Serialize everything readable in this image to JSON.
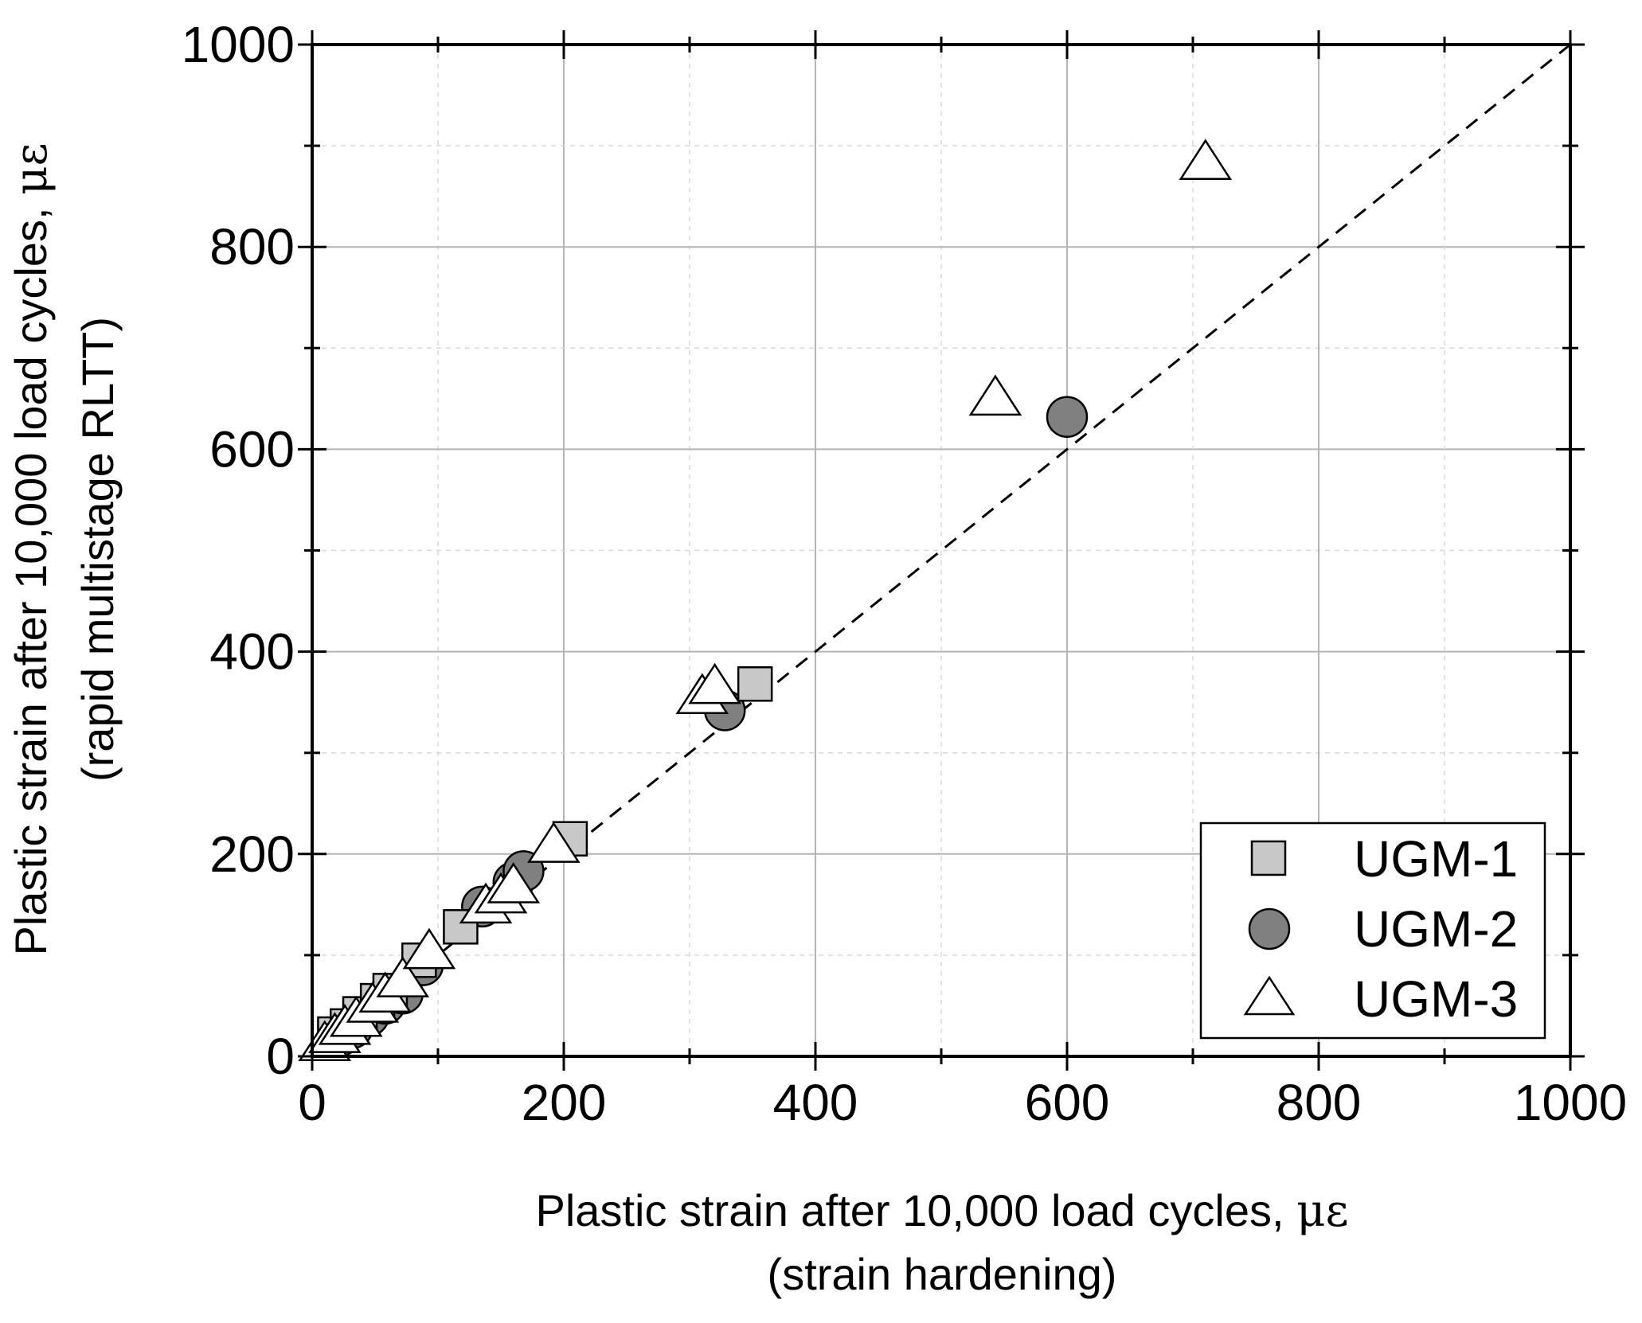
{
  "chart_data": {
    "type": "scatter",
    "xlabel": "Plastic strain after 10,000 load cycles, ",
    "xlabel_unit": "με",
    "xlabel_sub": "(strain hardening)",
    "ylabel": "Plastic strain after 10,000 load cycles, ",
    "ylabel_unit": "με",
    "ylabel_sub": "(rapid multistage RLTT)",
    "xlim": [
      0,
      1000
    ],
    "ylim": [
      0,
      1000
    ],
    "xticks": [
      "0",
      "200",
      "400",
      "600",
      "800",
      "1000"
    ],
    "yticks": [
      "0",
      "200",
      "400",
      "600",
      "800",
      "1000"
    ],
    "grid": true,
    "reference_line": {
      "style": "dashed",
      "x": [
        0,
        1000
      ],
      "y": [
        0,
        1000
      ]
    },
    "legend_position": "bottom-right",
    "series": [
      {
        "name": "UGM-1",
        "marker": "square",
        "color": "#c8c8c8",
        "x": [
          18,
          28,
          38,
          52,
          62,
          85,
          118,
          205,
          352
        ],
        "y": [
          22,
          30,
          42,
          55,
          65,
          95,
          128,
          215,
          368
        ]
      },
      {
        "name": "UGM-2",
        "marker": "circle",
        "color": "#808080",
        "x": [
          22,
          32,
          45,
          58,
          72,
          88,
          135,
          160,
          168,
          328,
          600
        ],
        "y": [
          20,
          28,
          40,
          52,
          62,
          90,
          148,
          172,
          183,
          342,
          632
        ]
      },
      {
        "name": "UGM-3",
        "marker": "triangle",
        "color": "#ffffff",
        "x": [
          10,
          18,
          26,
          35,
          48,
          58,
          72,
          93,
          138,
          150,
          160,
          192,
          310,
          320,
          543,
          710
        ],
        "y": [
          12,
          20,
          28,
          36,
          50,
          60,
          75,
          103,
          148,
          158,
          168,
          208,
          355,
          365,
          650,
          883
        ]
      }
    ]
  }
}
